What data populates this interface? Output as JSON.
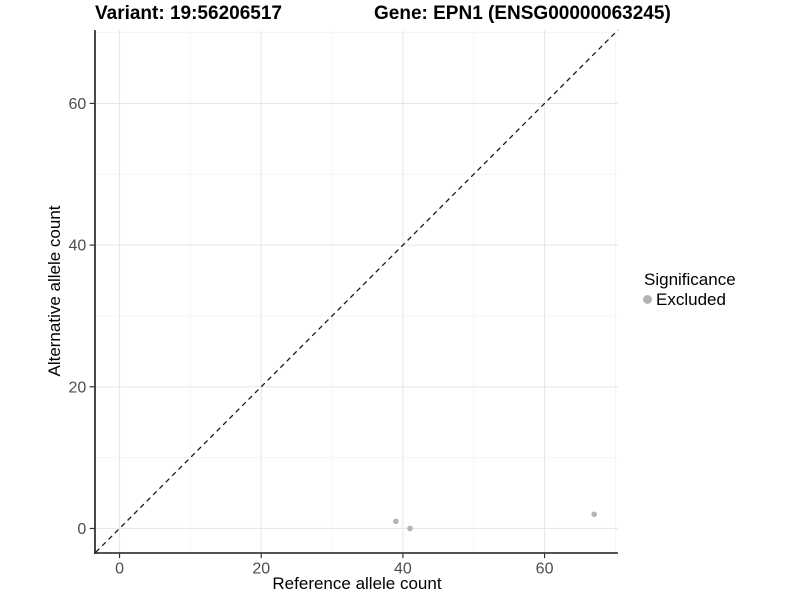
{
  "chart_data": {
    "type": "scatter",
    "title_left": "Variant: 19:56206517",
    "title_right": "Gene: EPN1 (ENSG00000063245)",
    "xlabel": "Reference allele count",
    "ylabel": "Alternative allele count",
    "xlim": [
      -3.35,
      70.35
    ],
    "ylim": [
      -3.35,
      70.35
    ],
    "x_ticks": [
      0,
      20,
      40,
      60
    ],
    "y_ticks": [
      0,
      20,
      40,
      60
    ],
    "x_minor_gridlines": [
      10,
      30,
      50,
      70
    ],
    "y_minor_gridlines": [
      10,
      30,
      50,
      70
    ],
    "grid": "major+minor",
    "identity_line": {
      "slope": 1,
      "intercept": 0,
      "style": "dashed",
      "color": "#1a1a1a"
    },
    "series": [
      {
        "name": "Excluded",
        "color": "#b3b3b3",
        "points": [
          {
            "x": 39,
            "y": 1
          },
          {
            "x": 41,
            "y": 0
          },
          {
            "x": 67,
            "y": 2
          }
        ]
      }
    ],
    "legend": {
      "title": "Significance",
      "position": "right",
      "entries": [
        {
          "label": "Excluded",
          "color": "#b3b3b3"
        }
      ]
    },
    "colors": {
      "background": "#ffffff",
      "grid_major": "#e8e8e8",
      "grid_minor": "#f4f4f4",
      "axis_line": "#1a1a1a",
      "tick_label": "#4d4d4d"
    }
  }
}
